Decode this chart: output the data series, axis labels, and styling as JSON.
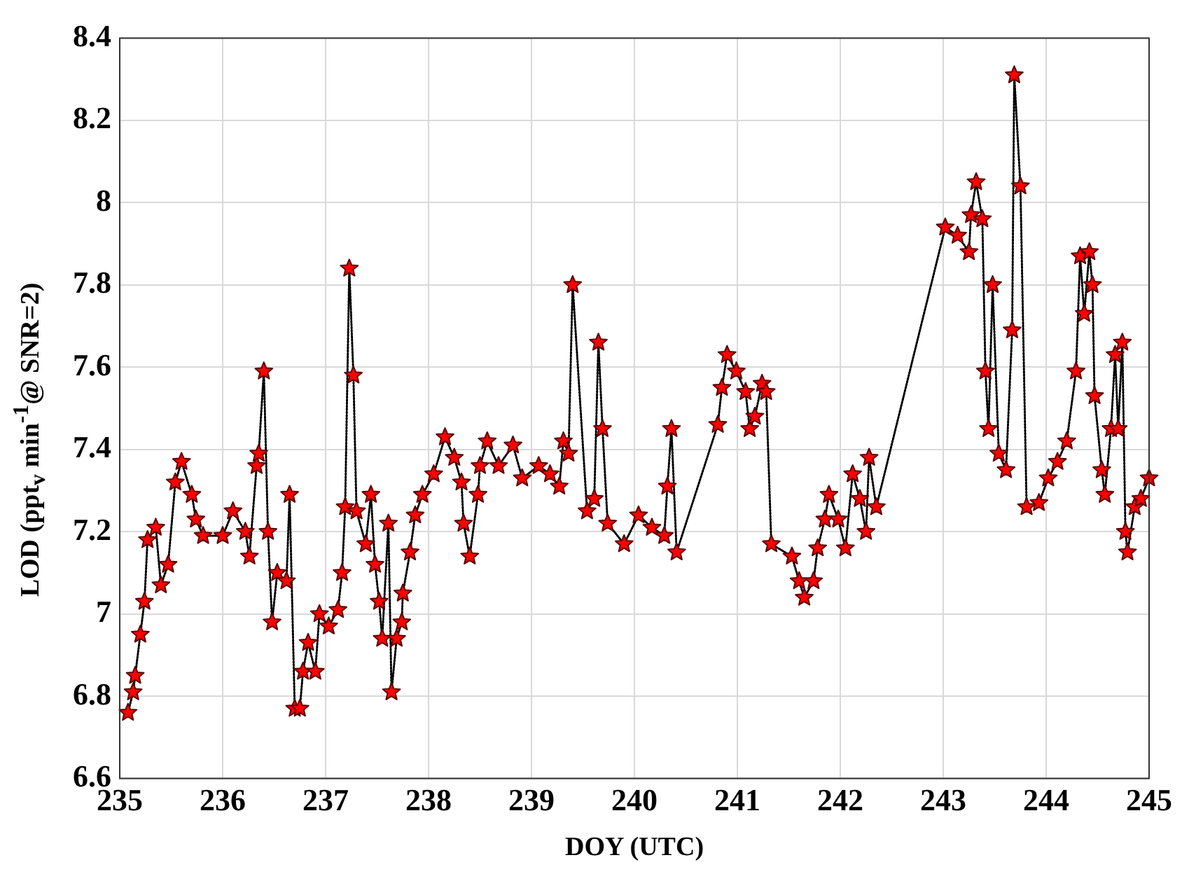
{
  "chart_data": {
    "type": "line",
    "xlabel": "DOY (UTC)",
    "ylabel": "LOD (ppt$_{v}$ min$^{-1}$@ SNR=2)",
    "xlim": [
      235,
      245
    ],
    "xticks": [
      235,
      236,
      237,
      238,
      239,
      240,
      241,
      242,
      243,
      244,
      245
    ],
    "ylim": [
      6.6,
      8.4
    ],
    "yticks": [
      6.6,
      6.8,
      7,
      7.2,
      7.4,
      7.6,
      7.8,
      8,
      8.2,
      8.4
    ],
    "grid": true,
    "marker": "star",
    "line_style": "dotted",
    "series": [
      {
        "color": "#ff0000",
        "x": [
          235.08,
          235.13,
          235.15,
          235.2,
          235.24,
          235.27,
          235.35,
          235.4,
          235.47,
          235.54,
          235.6,
          235.7,
          235.74,
          235.81,
          236.0,
          236.1,
          236.22,
          236.26,
          236.33,
          236.35,
          236.4,
          236.44,
          236.48,
          236.53,
          236.62,
          236.65,
          236.7,
          236.75,
          236.78,
          236.83,
          236.9,
          236.94,
          237.03,
          237.12,
          237.16,
          237.19,
          237.23,
          237.27,
          237.3,
          237.39,
          237.44,
          237.48,
          237.52,
          237.55,
          237.61,
          237.64,
          237.69,
          237.74,
          237.75,
          237.82,
          237.87,
          237.94,
          238.05,
          238.16,
          238.25,
          238.32,
          238.34,
          238.4,
          238.48,
          238.5,
          238.57,
          238.68,
          238.82,
          238.91,
          239.07,
          239.18,
          239.27,
          239.31,
          239.36,
          239.4,
          239.54,
          239.61,
          239.65,
          239.69,
          239.74,
          239.9,
          240.04,
          240.17,
          240.29,
          240.32,
          240.36,
          240.41,
          240.81,
          240.85,
          240.9,
          240.99,
          241.08,
          241.12,
          241.17,
          241.24,
          241.28,
          241.33,
          241.53,
          241.6,
          241.65,
          241.74,
          241.78,
          241.85,
          241.89,
          241.98,
          242.05,
          242.12,
          242.19,
          242.25,
          242.28,
          242.35,
          243.02,
          243.14,
          243.25,
          243.27,
          243.32,
          243.38,
          243.41,
          243.44,
          243.48,
          243.54,
          243.61,
          243.67,
          243.69,
          243.75,
          243.81,
          243.93,
          244.02,
          244.11,
          244.2,
          244.29,
          244.33,
          244.37,
          244.42,
          244.45,
          244.47,
          244.54,
          244.57,
          244.63,
          244.67,
          244.7,
          244.74,
          244.77,
          244.79,
          244.86,
          244.92,
          245.0
        ],
        "values": [
          6.76,
          6.81,
          6.85,
          6.95,
          7.03,
          7.18,
          7.21,
          7.07,
          7.12,
          7.32,
          7.37,
          7.29,
          7.23,
          7.19,
          7.19,
          7.25,
          7.2,
          7.14,
          7.36,
          7.39,
          7.59,
          7.2,
          6.98,
          7.1,
          7.08,
          7.29,
          6.77,
          6.77,
          6.86,
          6.93,
          6.86,
          7.0,
          6.97,
          7.01,
          7.1,
          7.26,
          7.84,
          7.58,
          7.25,
          7.17,
          7.29,
          7.12,
          7.03,
          6.94,
          7.22,
          6.81,
          6.94,
          6.98,
          7.05,
          7.15,
          7.24,
          7.29,
          7.34,
          7.43,
          7.38,
          7.32,
          7.22,
          7.14,
          7.29,
          7.36,
          7.42,
          7.36,
          7.41,
          7.33,
          7.36,
          7.34,
          7.31,
          7.42,
          7.39,
          7.8,
          7.25,
          7.28,
          7.66,
          7.45,
          7.22,
          7.17,
          7.24,
          7.21,
          7.19,
          7.31,
          7.45,
          7.15,
          7.46,
          7.55,
          7.63,
          7.59,
          7.54,
          7.45,
          7.48,
          7.56,
          7.54,
          7.17,
          7.14,
          7.08,
          7.04,
          7.08,
          7.16,
          7.23,
          7.29,
          7.23,
          7.16,
          7.34,
          7.28,
          7.2,
          7.38,
          7.26,
          7.94,
          7.92,
          7.88,
          7.97,
          8.05,
          7.96,
          7.59,
          7.45,
          7.8,
          7.39,
          7.35,
          7.69,
          8.31,
          8.04,
          7.26,
          7.27,
          7.33,
          7.37,
          7.42,
          7.59,
          7.87,
          7.73,
          7.88,
          7.8,
          7.53,
          7.35,
          7.29,
          7.45,
          7.63,
          7.45,
          7.66,
          7.2,
          7.15,
          7.26,
          7.28,
          7.33
        ]
      }
    ]
  }
}
